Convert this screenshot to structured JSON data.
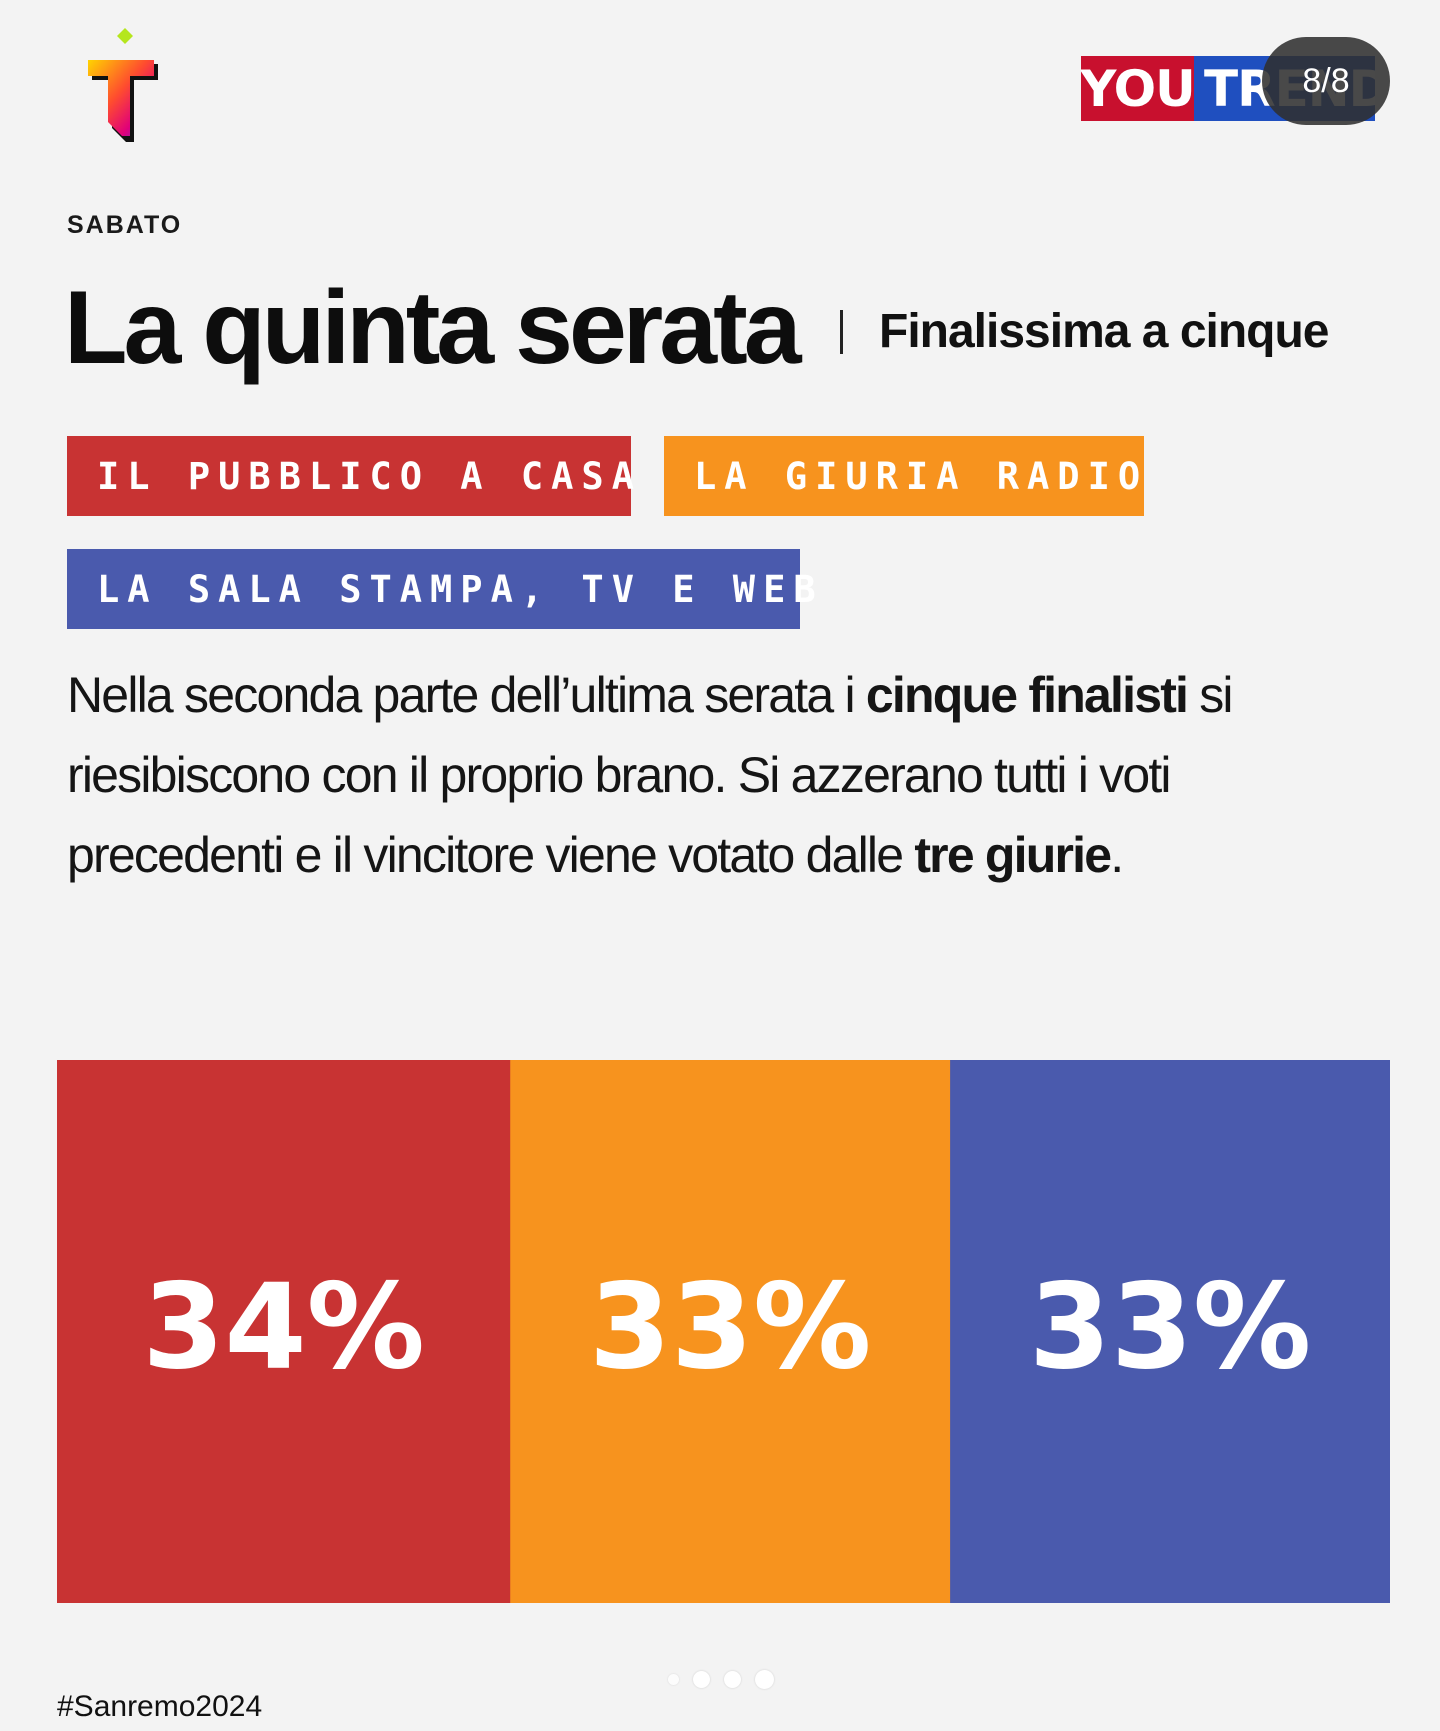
{
  "header": {
    "brand_you": "YOU",
    "brand_trend": "TREND",
    "page_counter": "8/8"
  },
  "eyebrow": "SABATO",
  "title": "La quinta serata",
  "subtitle": "Finalissima a cinque",
  "tags": [
    {
      "label": "IL PUBBLICO A CASA",
      "color": "#c83333"
    },
    {
      "label": "LA GIURIA RADIO",
      "color": "#f7931e"
    },
    {
      "label": "LA SALA STAMPA, TV E WEB",
      "color": "#4a5aad"
    }
  ],
  "description": {
    "p1": "Nella seconda parte dell’ultima serata i ",
    "b1": "cinque finalisti",
    "p2": " si riesibiscono con il proprio brano. Si azzerano tutti i voti precedenti e il vincitore viene votato dalle ",
    "b2": "tre giurie",
    "p3": "."
  },
  "chart_data": {
    "type": "bar",
    "orientation": "stacked-horizontal",
    "categories": [
      "IL PUBBLICO A CASA",
      "LA GIURIA RADIO",
      "LA SALA STAMPA, TV E WEB"
    ],
    "values": [
      34,
      33,
      33
    ],
    "labels": [
      "34%",
      "33%",
      "33%"
    ],
    "colors": [
      "#c83333",
      "#f7931e",
      "#4a5aad"
    ],
    "title": "",
    "xlabel": "",
    "ylabel": ""
  },
  "footer": {
    "hashtag": "#Sanremo2024",
    "pager_dots": 4
  }
}
